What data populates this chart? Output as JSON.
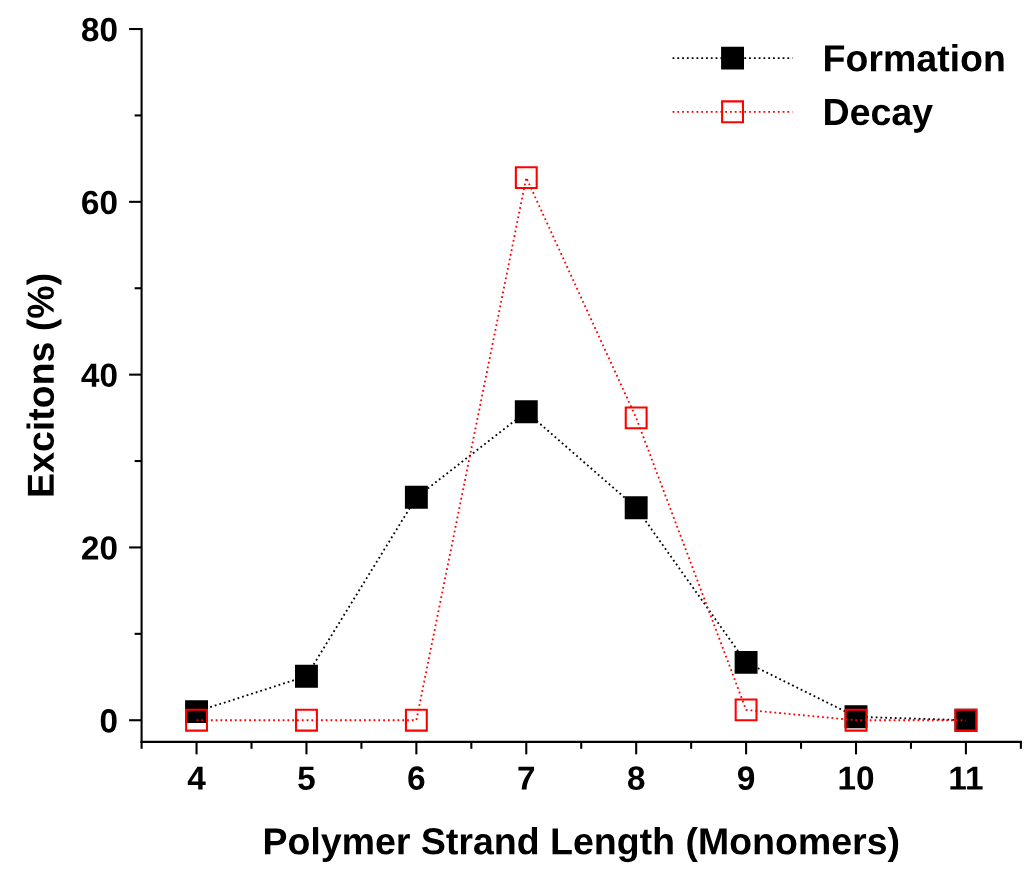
{
  "chart_data": {
    "type": "line",
    "xlabel": "Polymer Strand Length (Monomers)",
    "ylabel": "Excitons (%)",
    "x": [
      4,
      5,
      6,
      7,
      8,
      9,
      10,
      11
    ],
    "series": [
      {
        "name": "Formation",
        "color": "#000000",
        "values": [
          1.0,
          5.1,
          25.8,
          35.7,
          24.6,
          6.7,
          0.4,
          0
        ]
      },
      {
        "name": "Decay",
        "color": "#ff0000",
        "values": [
          0,
          0,
          0,
          62.8,
          35.0,
          1.2,
          0,
          0
        ]
      }
    ],
    "xlim": [
      3.5,
      11.5
    ],
    "xticks": [
      4,
      5,
      6,
      7,
      8,
      9,
      10,
      11
    ],
    "ylim": [
      -2.5,
      80
    ],
    "yticks": [
      0,
      20,
      40,
      60,
      80
    ],
    "grid": false,
    "legend": "top right",
    "marker": "square",
    "line_style": "dotted"
  }
}
